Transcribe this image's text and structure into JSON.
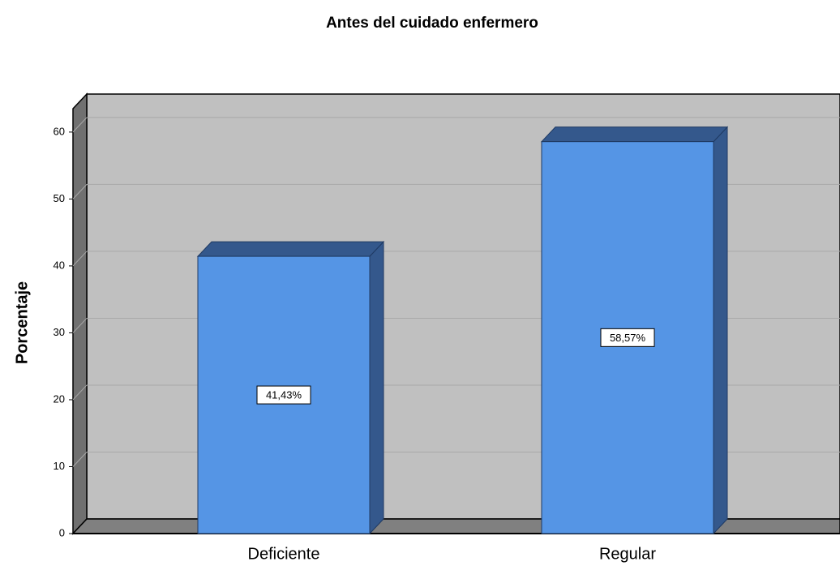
{
  "chart_data": {
    "type": "bar3d",
    "title": "Antes del cuidado enfermero",
    "y_label": "Porcentaje",
    "categories": [
      "Deficiente",
      "Regular"
    ],
    "values": [
      41.43,
      58.57
    ],
    "value_labels": [
      "41,43%",
      "58,57%"
    ],
    "color": "#5595e5",
    "ylim": [
      0,
      63.5
    ],
    "yticks": [
      0,
      10,
      20,
      30,
      40,
      50,
      60
    ],
    "grid": true
  }
}
